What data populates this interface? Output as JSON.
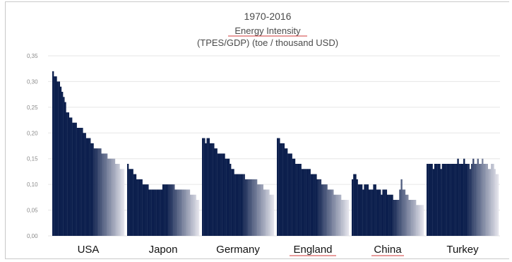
{
  "chart_data": {
    "type": "bar",
    "title": "1970-2016",
    "subtitle": "Energy Intensity",
    "subtitle2": "(TPES/GDP) (toe / thousand USD)",
    "xlabel": "",
    "ylabel": "",
    "ylim": [
      0,
      0.35
    ],
    "yticks": [
      "0,00",
      "0,05",
      "0,10",
      "0,15",
      "0,20",
      "0,25",
      "0,30",
      "0,35"
    ],
    "grid": true,
    "legend": "none",
    "colors": {
      "start": "#0c1f4d",
      "end": "#e2e2ea"
    },
    "groups": [
      {
        "name": "USA",
        "values": [
          0.32,
          0.31,
          0.31,
          0.3,
          0.3,
          0.29,
          0.28,
          0.27,
          0.26,
          0.24,
          0.24,
          0.23,
          0.23,
          0.22,
          0.22,
          0.22,
          0.21,
          0.21,
          0.21,
          0.21,
          0.2,
          0.2,
          0.19,
          0.19,
          0.19,
          0.18,
          0.18,
          0.17,
          0.17,
          0.17,
          0.17,
          0.17,
          0.16,
          0.16,
          0.16,
          0.16,
          0.15,
          0.15,
          0.15,
          0.15,
          0.15,
          0.14,
          0.14,
          0.14,
          0.13,
          0.13,
          0.13
        ]
      },
      {
        "name": "Japon",
        "values": [
          0.14,
          0.13,
          0.13,
          0.13,
          0.12,
          0.12,
          0.11,
          0.11,
          0.11,
          0.11,
          0.1,
          0.1,
          0.1,
          0.1,
          0.09,
          0.09,
          0.09,
          0.09,
          0.09,
          0.09,
          0.09,
          0.09,
          0.09,
          0.1,
          0.1,
          0.1,
          0.1,
          0.1,
          0.1,
          0.1,
          0.1,
          0.09,
          0.09,
          0.09,
          0.09,
          0.09,
          0.09,
          0.09,
          0.09,
          0.09,
          0.09,
          0.08,
          0.08,
          0.08,
          0.08,
          0.07,
          0.07
        ]
      },
      {
        "name": "Germany",
        "values": [
          0.19,
          0.19,
          0.18,
          0.19,
          0.19,
          0.18,
          0.18,
          0.18,
          0.17,
          0.17,
          0.16,
          0.16,
          0.16,
          0.16,
          0.16,
          0.15,
          0.15,
          0.15,
          0.14,
          0.13,
          0.13,
          0.12,
          0.12,
          0.12,
          0.12,
          0.12,
          0.12,
          0.12,
          0.11,
          0.11,
          0.11,
          0.11,
          0.11,
          0.11,
          0.11,
          0.11,
          0.1,
          0.1,
          0.1,
          0.1,
          0.09,
          0.09,
          0.09,
          0.09,
          0.08,
          0.08,
          0.08
        ]
      },
      {
        "name": "England",
        "values": [
          0.19,
          0.19,
          0.18,
          0.18,
          0.18,
          0.17,
          0.17,
          0.16,
          0.16,
          0.16,
          0.15,
          0.15,
          0.14,
          0.14,
          0.14,
          0.14,
          0.13,
          0.13,
          0.13,
          0.13,
          0.13,
          0.13,
          0.12,
          0.12,
          0.12,
          0.12,
          0.11,
          0.11,
          0.11,
          0.1,
          0.1,
          0.1,
          0.1,
          0.09,
          0.09,
          0.09,
          0.09,
          0.08,
          0.08,
          0.08,
          0.08,
          0.08,
          0.07,
          0.07,
          0.07,
          0.07,
          0.07
        ]
      },
      {
        "name": "China",
        "values": [
          0.11,
          0.12,
          0.12,
          0.11,
          0.1,
          0.1,
          0.1,
          0.09,
          0.1,
          0.1,
          0.1,
          0.09,
          0.09,
          0.09,
          0.1,
          0.1,
          0.09,
          0.09,
          0.09,
          0.08,
          0.09,
          0.09,
          0.09,
          0.08,
          0.08,
          0.08,
          0.08,
          0.07,
          0.07,
          0.07,
          0.07,
          0.09,
          0.11,
          0.09,
          0.09,
          0.08,
          0.08,
          0.07,
          0.07,
          0.07,
          0.07,
          0.07,
          0.06,
          0.06,
          0.06,
          0.06,
          0.06
        ]
      },
      {
        "name": "Turkey",
        "values": [
          0.14,
          0.14,
          0.14,
          0.14,
          0.13,
          0.14,
          0.14,
          0.14,
          0.14,
          0.13,
          0.14,
          0.14,
          0.14,
          0.14,
          0.14,
          0.14,
          0.14,
          0.14,
          0.14,
          0.14,
          0.15,
          0.14,
          0.14,
          0.14,
          0.15,
          0.14,
          0.14,
          0.14,
          0.13,
          0.14,
          0.15,
          0.14,
          0.14,
          0.15,
          0.14,
          0.14,
          0.15,
          0.14,
          0.14,
          0.14,
          0.13,
          0.13,
          0.14,
          0.14,
          0.13,
          0.12,
          0.12
        ]
      }
    ]
  }
}
